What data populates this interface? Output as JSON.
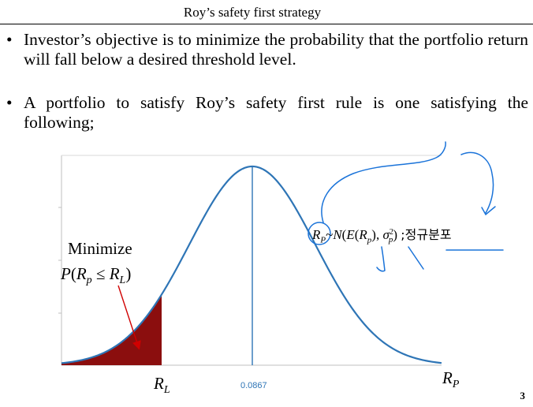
{
  "slide": {
    "title": "Roy’s safety first strategy",
    "bullets": [
      "Investor’s objective is to minimize the probability that the portfolio return will fall below a desired threshold level.",
      "A portfolio to satisfy Roy’s safety first rule is one satisfying the following;"
    ],
    "bullet_marker": "•",
    "page_number": "3"
  },
  "figure": {
    "minimize_label": "Minimize",
    "probability_expr": "P(R_p ≤ R_L)",
    "distribution_text": "R_P~N(E(R_p), σ_p^2)",
    "korean_note": ";정규분포",
    "x_axis_label": "R_P",
    "threshold_label": "R_L",
    "mean_value": "0.0867",
    "colors": {
      "curve": "#2e75b6",
      "tail_fill": "#8b0e0e",
      "arrow": "#d00000",
      "annotation_ink": "#1a73d9",
      "axis": "#bfbfbf"
    }
  }
}
